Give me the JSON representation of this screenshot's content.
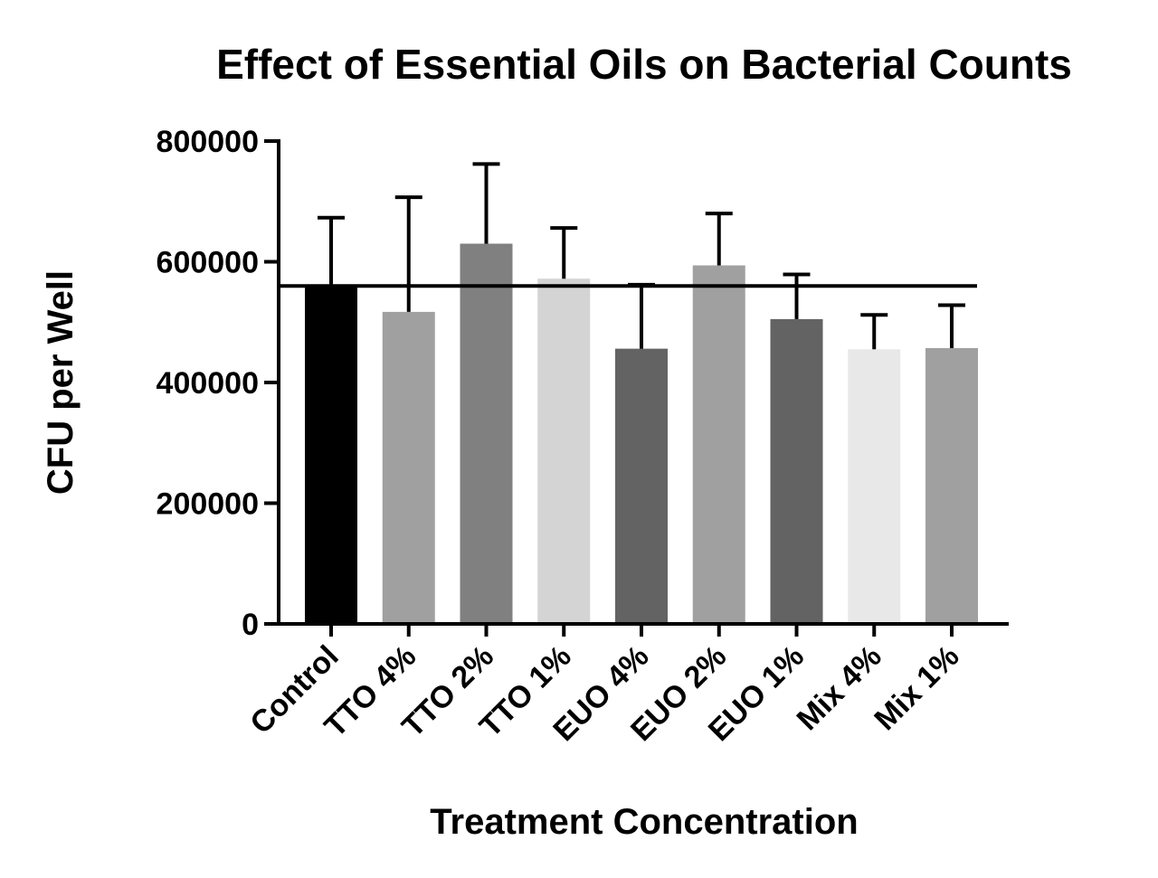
{
  "chart_data": {
    "type": "bar",
    "title": "Effect of Essential Oils on Bacterial Counts",
    "xlabel": "Treatment Concentration",
    "ylabel": "CFU per Well",
    "ylim": [
      0,
      800000
    ],
    "yticks": [
      "0",
      "200000",
      "400000",
      "600000",
      "800000"
    ],
    "categories": [
      "Control",
      "TTO 4%",
      "TTO 2%",
      "TTO 1%",
      "EUO 4%",
      "EUO 2%",
      "EUO 1%",
      "Mix 4%",
      "Mix 1%"
    ],
    "values": [
      560000,
      517000,
      630000,
      572000,
      456000,
      594000,
      505000,
      455000,
      457000
    ],
    "error_upper": [
      673000,
      707000,
      762000,
      656000,
      562000,
      680000,
      579000,
      512000,
      528000
    ],
    "bar_colors": [
      "#000000",
      "#a0a0a0",
      "#808080",
      "#d4d4d4",
      "#636363",
      "#a0a0a0",
      "#636363",
      "#e8e8e8",
      "#a0a0a0"
    ],
    "reference_line": 560000,
    "grid": false,
    "legend": "none"
  }
}
